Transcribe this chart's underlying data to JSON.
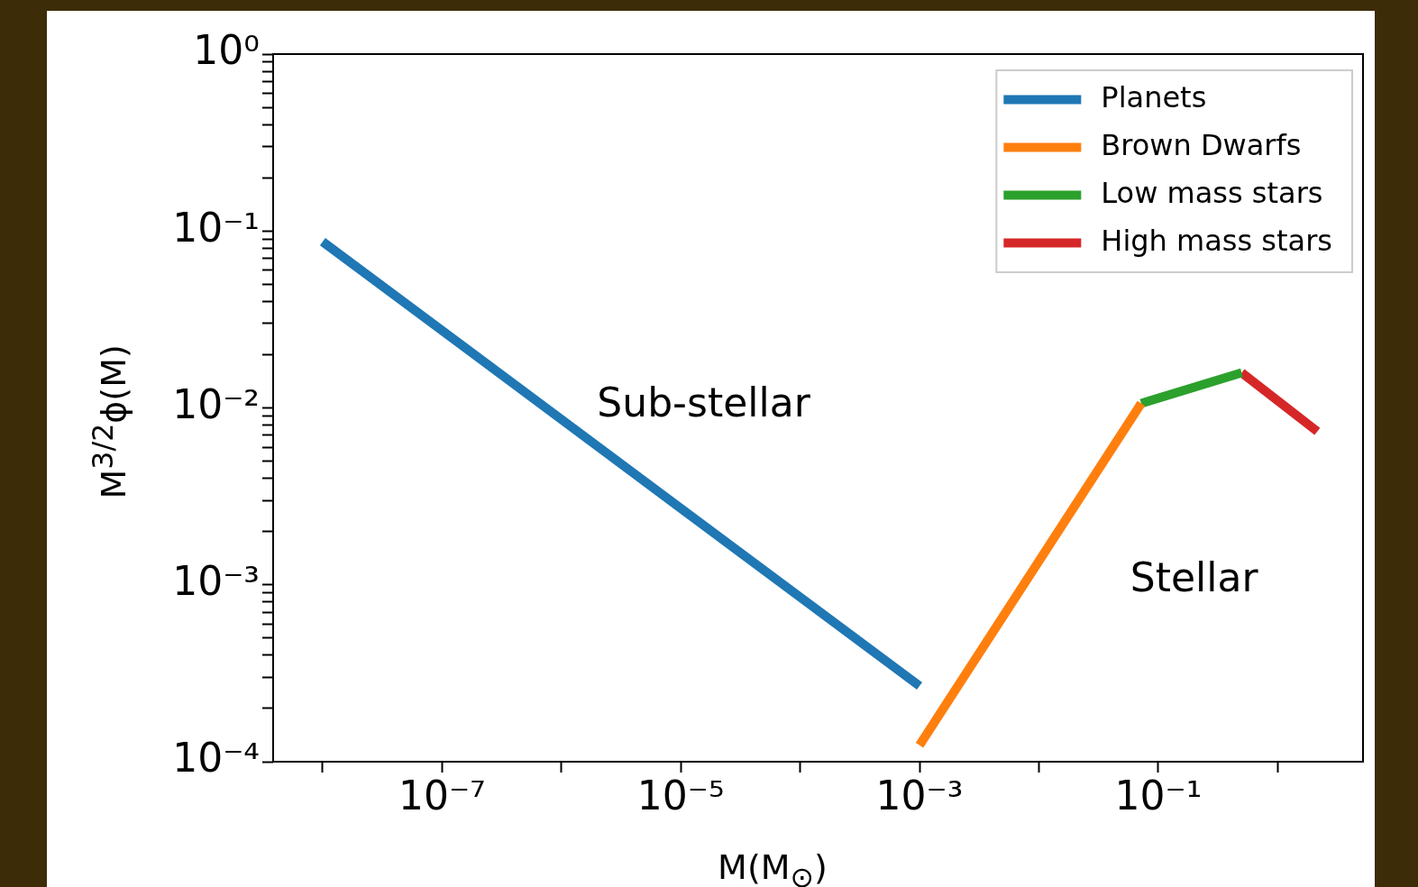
{
  "chart_data": {
    "type": "line",
    "xlabel": "M(M$_{⊙}$)",
    "ylabel": "M$^{3/2}$ϕ(M)",
    "log": "xy",
    "grid": false,
    "legend": "top right",
    "marker": "none",
    "line_style": "solid",
    "xlim": [
      3.85e-09,
      5.19
    ],
    "ylim": [
      0.0001,
      1
    ],
    "xticks": [
      {
        "value": 1e-08,
        "label": null
      },
      {
        "value": 1e-07,
        "label": "10⁻⁷"
      },
      {
        "value": 1e-06,
        "label": null
      },
      {
        "value": 1e-05,
        "label": "10⁻⁵"
      },
      {
        "value": 0.0001,
        "label": null
      },
      {
        "value": 0.001,
        "label": "10⁻³"
      },
      {
        "value": 0.01,
        "label": null
      },
      {
        "value": 0.1,
        "label": "10⁻¹"
      },
      {
        "value": 1,
        "label": null
      }
    ],
    "yticks": [
      {
        "value": 0.0001,
        "label": "10⁻⁴"
      },
      {
        "value": 0.0002,
        "label": null
      },
      {
        "value": 0.0003,
        "label": null
      },
      {
        "value": 0.0004,
        "label": null
      },
      {
        "value": 0.0005,
        "label": null
      },
      {
        "value": 0.0006,
        "label": null
      },
      {
        "value": 0.0007,
        "label": null
      },
      {
        "value": 0.0008,
        "label": null
      },
      {
        "value": 0.0009,
        "label": null
      },
      {
        "value": 0.001,
        "label": "10⁻³"
      },
      {
        "value": 0.002,
        "label": null
      },
      {
        "value": 0.003,
        "label": null
      },
      {
        "value": 0.004,
        "label": null
      },
      {
        "value": 0.005,
        "label": null
      },
      {
        "value": 0.006,
        "label": null
      },
      {
        "value": 0.007,
        "label": null
      },
      {
        "value": 0.008,
        "label": null
      },
      {
        "value": 0.009,
        "label": null
      },
      {
        "value": 0.01,
        "label": "10⁻²"
      },
      {
        "value": 0.02,
        "label": null
      },
      {
        "value": 0.03,
        "label": null
      },
      {
        "value": 0.04,
        "label": null
      },
      {
        "value": 0.05,
        "label": null
      },
      {
        "value": 0.06,
        "label": null
      },
      {
        "value": 0.07,
        "label": null
      },
      {
        "value": 0.08,
        "label": null
      },
      {
        "value": 0.09,
        "label": null
      },
      {
        "value": 0.1,
        "label": "10⁻¹"
      },
      {
        "value": 0.2,
        "label": null
      },
      {
        "value": 0.3,
        "label": null
      },
      {
        "value": 0.4,
        "label": null
      },
      {
        "value": 0.5,
        "label": null
      },
      {
        "value": 0.6,
        "label": null
      },
      {
        "value": 0.7,
        "label": null
      },
      {
        "value": 0.8,
        "label": null
      },
      {
        "value": 0.9,
        "label": null
      },
      {
        "value": 1,
        "label": "10⁰"
      }
    ],
    "series": [
      {
        "name": "Planets",
        "color": "#1f77b4",
        "x": [
          1e-08,
          0.001
        ],
        "values": [
          0.087,
          0.000268
        ]
      },
      {
        "name": "Brown Dwarfs",
        "color": "#ff7f0e",
        "x": [
          0.001,
          0.072
        ],
        "values": [
          0.000124,
          0.0106
        ]
      },
      {
        "name": "Low mass stars",
        "color": "#2ca02c",
        "x": [
          0.072,
          0.5
        ],
        "values": [
          0.0106,
          0.0158
        ]
      },
      {
        "name": "High mass stars",
        "color": "#d62728",
        "x": [
          0.5,
          2.15
        ],
        "values": [
          0.0158,
          0.00736
        ]
      }
    ],
    "annotations": [
      "Sub-stellar",
      "Stellar"
    ]
  }
}
